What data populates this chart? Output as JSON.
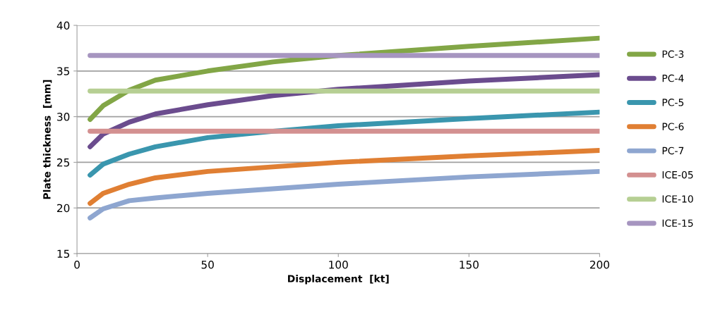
{
  "chart_data": {
    "type": "line",
    "xlabel": "Displacement  [kt]",
    "ylabel": "Plate thickness  [mm]",
    "x": [
      5,
      10,
      20,
      30,
      50,
      75,
      100,
      150,
      200
    ],
    "xlim": [
      0,
      200
    ],
    "xticks": [
      0,
      50,
      100,
      150,
      200
    ],
    "ylim": [
      15,
      40
    ],
    "yticks": [
      15,
      20,
      25,
      30,
      35,
      40
    ],
    "grid": "y",
    "legend": "right",
    "marker": "none",
    "line_style": "solid",
    "series": [
      {
        "name": "PC-3",
        "color": "#82a646",
        "values": [
          29.7,
          31.2,
          32.9,
          34.0,
          35.0,
          36.0,
          36.7,
          37.7,
          38.6
        ]
      },
      {
        "name": "PC-4",
        "color": "#6b4c8e",
        "values": [
          26.7,
          28.1,
          29.4,
          30.3,
          31.3,
          32.3,
          33.0,
          33.9,
          34.6
        ]
      },
      {
        "name": "PC-5",
        "color": "#3a96ae",
        "values": [
          23.6,
          24.8,
          25.9,
          26.7,
          27.7,
          28.4,
          29.0,
          29.8,
          30.5
        ]
      },
      {
        "name": "PC-6",
        "color": "#e07f33",
        "values": [
          20.5,
          21.6,
          22.6,
          23.3,
          24.0,
          24.5,
          25.0,
          25.7,
          26.3
        ]
      },
      {
        "name": "PC-7",
        "color": "#8ea6d0",
        "values": [
          18.9,
          19.9,
          20.8,
          21.1,
          21.6,
          22.1,
          22.6,
          23.4,
          24.0
        ]
      },
      {
        "name": "ICE-05",
        "color": "#d39090",
        "values": [
          28.4,
          28.4,
          28.4,
          28.4,
          28.4,
          28.4,
          28.4,
          28.4,
          28.4
        ]
      },
      {
        "name": "ICE-10",
        "color": "#b6cf93",
        "values": [
          32.8,
          32.8,
          32.8,
          32.8,
          32.8,
          32.8,
          32.8,
          32.8,
          32.8
        ]
      },
      {
        "name": "ICE-15",
        "color": "#a695c0",
        "values": [
          36.7,
          36.7,
          36.7,
          36.7,
          36.7,
          36.7,
          36.7,
          36.7,
          36.7
        ]
      }
    ]
  }
}
